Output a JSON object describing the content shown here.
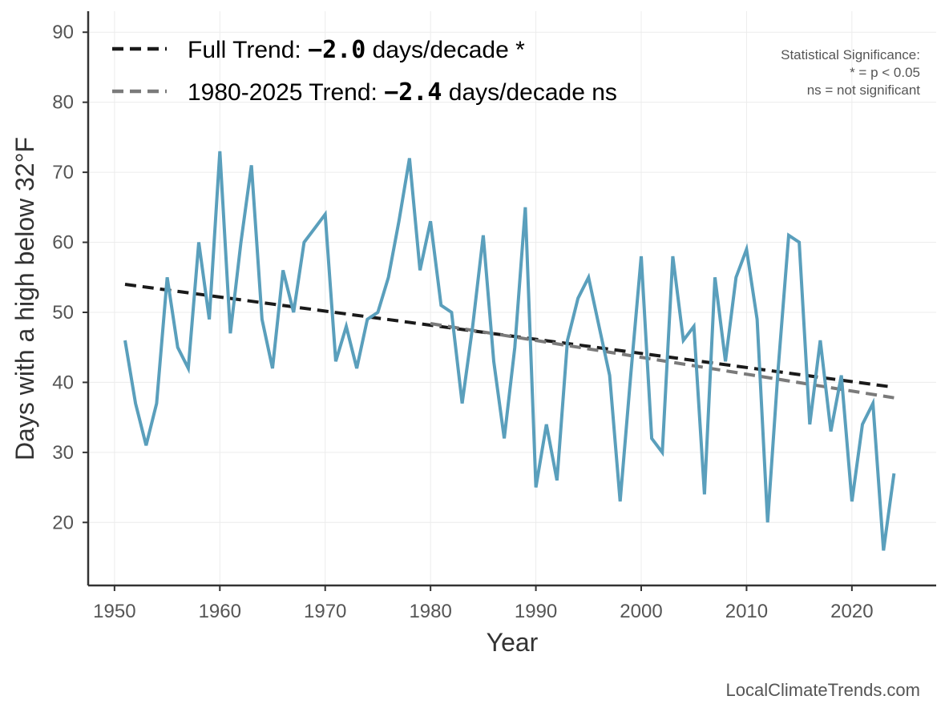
{
  "chart_data": {
    "type": "line",
    "xlabel": "Year",
    "ylabel": "Days with a high below 32°F",
    "xlim": [
      1947.5,
      2028
    ],
    "ylim": [
      11,
      93
    ],
    "xticks": [
      1950,
      1960,
      1970,
      1980,
      1990,
      2000,
      2010,
      2020
    ],
    "yticks": [
      20,
      30,
      40,
      50,
      60,
      70,
      80,
      90
    ],
    "grid": true,
    "series": [
      {
        "color": "#5a9fbc",
        "x": [
          1951,
          1952,
          1953,
          1954,
          1955,
          1956,
          1957,
          1958,
          1959,
          1960,
          1961,
          1962,
          1963,
          1964,
          1965,
          1966,
          1967,
          1968,
          1969,
          1970,
          1971,
          1972,
          1973,
          1974,
          1975,
          1976,
          1977,
          1978,
          1979,
          1980,
          1981,
          1982,
          1983,
          1984,
          1985,
          1986,
          1987,
          1988,
          1989,
          1990,
          1991,
          1992,
          1993,
          1994,
          1995,
          1996,
          1997,
          1998,
          1999,
          2000,
          2001,
          2002,
          2003,
          2004,
          2005,
          2006,
          2007,
          2008,
          2009,
          2010,
          2011,
          2012,
          2013,
          2014,
          2015,
          2016,
          2017,
          2018,
          2019,
          2020,
          2021,
          2022,
          2023,
          2024
        ],
        "values": [
          46,
          37,
          31,
          37,
          55,
          45,
          42,
          60,
          49,
          73,
          47,
          60,
          71,
          49,
          42,
          56,
          50,
          60,
          62,
          64,
          43,
          48,
          42,
          49,
          50,
          55,
          63,
          72,
          56,
          63,
          51,
          50,
          37,
          48,
          61,
          43,
          32,
          45,
          65,
          25,
          34,
          26,
          46,
          52,
          55,
          48,
          41,
          23,
          41,
          58,
          32,
          30,
          58,
          46,
          48,
          24,
          55,
          43,
          55,
          59,
          49,
          20,
          42,
          61,
          60,
          34,
          46,
          33,
          41,
          23,
          34,
          37,
          16,
          27
        ]
      },
      {
        "name": "Full Trend",
        "style": "dashed",
        "color": "#1a1a1a",
        "x": [
          1951,
          2024
        ],
        "values": [
          54.0,
          39.3
        ]
      },
      {
        "name": "1980-2025 Trend",
        "style": "dashed",
        "color": "#7a7a7a",
        "x": [
          1980,
          2024
        ],
        "values": [
          48.4,
          37.8
        ]
      }
    ],
    "legend": {
      "placement": "top-left",
      "entries": [
        {
          "prefix": "Full Trend: ",
          "value": "−2.0",
          "suffix": " days/decade *"
        },
        {
          "prefix": "1980-2025 Trend: ",
          "value": "−2.4",
          "suffix": " days/decade ns"
        }
      ]
    },
    "annotation": {
      "lines": [
        "Statistical Significance:",
        "* = p < 0.05",
        "ns = not significant"
      ],
      "placement": "top-right"
    },
    "credit": "LocalClimateTrends.com"
  }
}
